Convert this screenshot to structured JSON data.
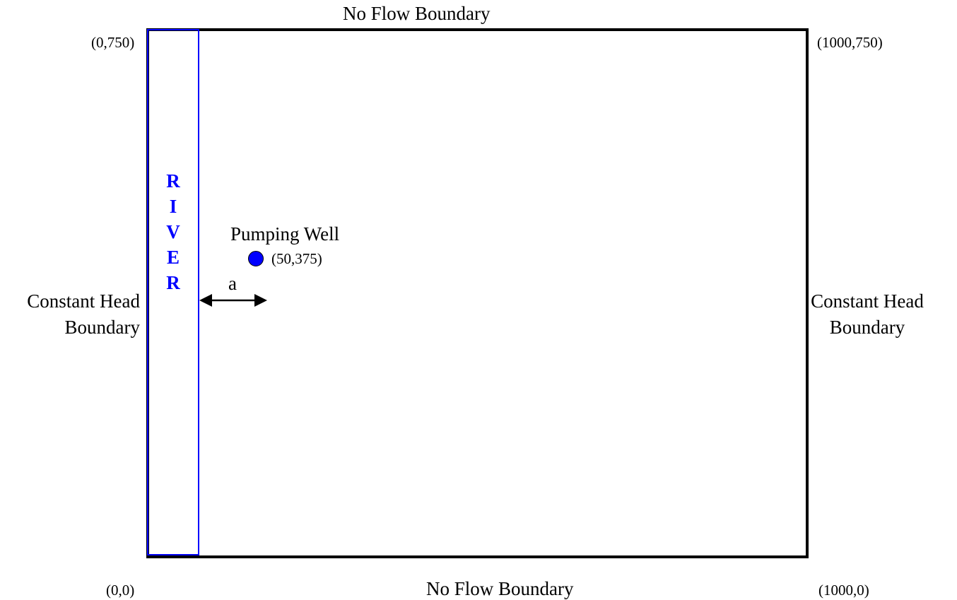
{
  "boundaries": {
    "top": "No Flow Boundary",
    "bottom": "No Flow Boundary",
    "left": [
      "Constant Head",
      "Boundary"
    ],
    "right": [
      "Constant Head",
      "Boundary"
    ]
  },
  "corners": {
    "top_left": "(0,750)",
    "top_right": "(1000,750)",
    "bottom_left": "(0,0)",
    "bottom_right": "(1000,0)"
  },
  "river": {
    "letters": [
      "R",
      "I",
      "V",
      "E",
      "R"
    ],
    "color": "#0000ff"
  },
  "well": {
    "label": "Pumping Well",
    "coords": "(50,375)",
    "marker_color": "#0000ff"
  },
  "distance": {
    "label": "a"
  }
}
